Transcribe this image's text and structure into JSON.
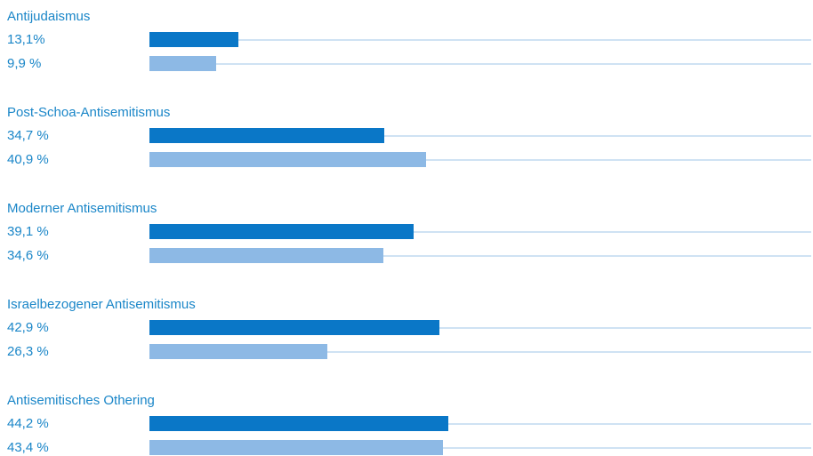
{
  "chart_data": {
    "type": "bar",
    "orientation": "horizontal",
    "xlim": [
      0,
      100
    ],
    "grid": false,
    "categories": [
      "Antijudaismus",
      "Post-Schoa-Antisemitismus",
      "Moderner Antisemitismus",
      "Israelbezogener Antisemitismus",
      "Antisemitisches Othering"
    ],
    "series": [
      {
        "values": [
          13.1,
          34.7,
          39.1,
          42.9,
          44.2
        ],
        "labels": [
          "13,1%",
          "34,7 %",
          "39,1 %",
          "42,9 %",
          "44,2 %"
        ]
      },
      {
        "values": [
          9.9,
          40.9,
          34.6,
          26.3,
          43.4
        ],
        "labels": [
          "9,9 %",
          "40,9 %",
          "34,6 %",
          "26,3 %",
          "43,4 %"
        ]
      }
    ]
  },
  "colors": {
    "text": "#1a86c8",
    "series_1": "#0a77c7",
    "series_2": "#8db9e5",
    "track": "#cfe2f3"
  }
}
